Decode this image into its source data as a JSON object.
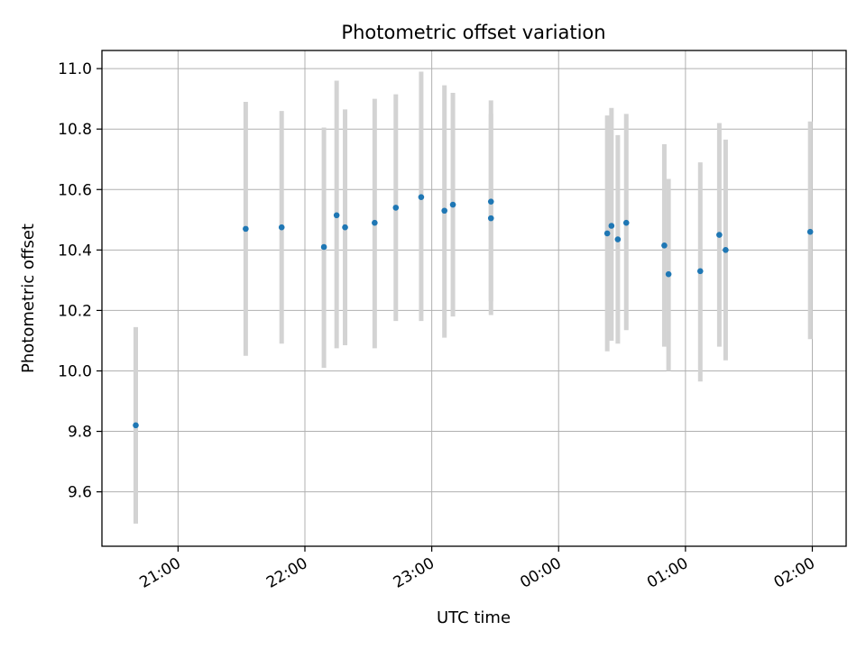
{
  "chart_data": {
    "type": "scatter",
    "title": "Photometric offset variation",
    "xlabel": "UTC time",
    "ylabel": "Photometric offset",
    "x_ticks": [
      "21:00",
      "22:00",
      "23:00",
      "00:00",
      "01:00",
      "02:00"
    ],
    "y_ticks": [
      "9.6",
      "9.8",
      "10.0",
      "10.2",
      "10.4",
      "10.6",
      "10.8",
      "11.0"
    ],
    "xlim": [
      "20:24",
      "02:16"
    ],
    "ylim": [
      9.42,
      11.06
    ],
    "grid": true,
    "colors": {
      "point": "#1f77b4",
      "errorbar": "#d3d3d3",
      "grid": "#b0b0b0"
    },
    "points": [
      {
        "x": "20:40",
        "y": 9.82,
        "ylo": 9.495,
        "yhi": 10.145
      },
      {
        "x": "21:32",
        "y": 10.47,
        "ylo": 10.05,
        "yhi": 10.89
      },
      {
        "x": "21:49",
        "y": 10.475,
        "ylo": 10.09,
        "yhi": 10.86
      },
      {
        "x": "22:09",
        "y": 10.41,
        "ylo": 10.01,
        "yhi": 10.805
      },
      {
        "x": "22:15",
        "y": 10.515,
        "ylo": 10.075,
        "yhi": 10.96
      },
      {
        "x": "22:19",
        "y": 10.475,
        "ylo": 10.085,
        "yhi": 10.865
      },
      {
        "x": "22:33",
        "y": 10.49,
        "ylo": 10.075,
        "yhi": 10.9
      },
      {
        "x": "22:43",
        "y": 10.54,
        "ylo": 10.165,
        "yhi": 10.915
      },
      {
        "x": "22:55",
        "y": 10.575,
        "ylo": 10.165,
        "yhi": 10.99
      },
      {
        "x": "23:06",
        "y": 10.53,
        "ylo": 10.11,
        "yhi": 10.945
      },
      {
        "x": "23:10",
        "y": 10.55,
        "ylo": 10.18,
        "yhi": 10.92
      },
      {
        "x": "23:28",
        "y": 10.56,
        "ylo": 10.23,
        "yhi": 10.895
      },
      {
        "x": "23:28",
        "y": 10.505,
        "ylo": 10.185,
        "yhi": 10.85
      },
      {
        "x": "00:23",
        "y": 10.455,
        "ylo": 10.065,
        "yhi": 10.845
      },
      {
        "x": "00:25",
        "y": 10.48,
        "ylo": 10.1,
        "yhi": 10.87
      },
      {
        "x": "00:28",
        "y": 10.435,
        "ylo": 10.09,
        "yhi": 10.78
      },
      {
        "x": "00:32",
        "y": 10.49,
        "ylo": 10.135,
        "yhi": 10.85
      },
      {
        "x": "00:50",
        "y": 10.415,
        "ylo": 10.08,
        "yhi": 10.75
      },
      {
        "x": "00:52",
        "y": 10.32,
        "ylo": 10.0,
        "yhi": 10.635
      },
      {
        "x": "01:07",
        "y": 10.33,
        "ylo": 9.965,
        "yhi": 10.69
      },
      {
        "x": "01:16",
        "y": 10.45,
        "ylo": 10.08,
        "yhi": 10.82
      },
      {
        "x": "01:19",
        "y": 10.4,
        "ylo": 10.035,
        "yhi": 10.765
      },
      {
        "x": "01:59",
        "y": 10.46,
        "ylo": 10.105,
        "yhi": 10.825
      }
    ]
  }
}
